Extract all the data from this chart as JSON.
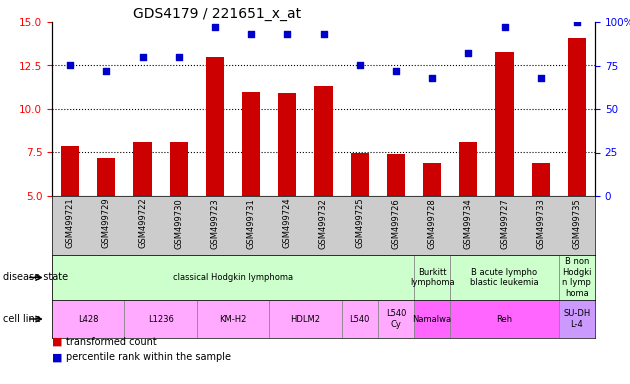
{
  "title": "GDS4179 / 221651_x_at",
  "samples": [
    "GSM499721",
    "GSM499729",
    "GSM499722",
    "GSM499730",
    "GSM499723",
    "GSM499731",
    "GSM499724",
    "GSM499732",
    "GSM499725",
    "GSM499726",
    "GSM499728",
    "GSM499734",
    "GSM499727",
    "GSM499733",
    "GSM499735"
  ],
  "bar_values": [
    7.9,
    7.2,
    8.1,
    8.1,
    13.0,
    11.0,
    10.9,
    11.3,
    7.5,
    7.4,
    6.9,
    8.1,
    13.3,
    6.9,
    14.1
  ],
  "dot_values": [
    75,
    72,
    80,
    80,
    97,
    93,
    93,
    93,
    75,
    72,
    68,
    82,
    97,
    68,
    100
  ],
  "ylim": [
    5,
    15
  ],
  "y2lim": [
    0,
    100
  ],
  "yticks": [
    5,
    7.5,
    10,
    12.5,
    15
  ],
  "y2ticks": [
    0,
    25,
    50,
    75,
    100
  ],
  "bar_color": "#cc0000",
  "dot_color": "#0000cc",
  "hline_values": [
    7.5,
    10.0,
    12.5
  ],
  "disease_state_groups": [
    {
      "label": "classical Hodgkin lymphoma",
      "start": 0,
      "end": 9,
      "color": "#ccffcc"
    },
    {
      "label": "Burkitt\nlymphoma",
      "start": 10,
      "end": 10,
      "color": "#ccffcc"
    },
    {
      "label": "B acute lympho\nblastic leukemia",
      "start": 11,
      "end": 13,
      "color": "#ccffcc"
    },
    {
      "label": "B non\nHodgki\nn lymp\nhoma",
      "start": 14,
      "end": 14,
      "color": "#ccffcc"
    }
  ],
  "cell_line_groups": [
    {
      "label": "L428",
      "start": 0,
      "end": 1,
      "color": "#ffaaff"
    },
    {
      "label": "L1236",
      "start": 2,
      "end": 3,
      "color": "#ffaaff"
    },
    {
      "label": "KM-H2",
      "start": 4,
      "end": 5,
      "color": "#ffaaff"
    },
    {
      "label": "HDLM2",
      "start": 6,
      "end": 7,
      "color": "#ffaaff"
    },
    {
      "label": "L540",
      "start": 8,
      "end": 8,
      "color": "#ffaaff"
    },
    {
      "label": "L540\nCy",
      "start": 9,
      "end": 9,
      "color": "#ffaaff"
    },
    {
      "label": "Namalwa",
      "start": 10,
      "end": 10,
      "color": "#ff66ff"
    },
    {
      "label": "Reh",
      "start": 11,
      "end": 13,
      "color": "#ff66ff"
    },
    {
      "label": "SU-DH\nL-4",
      "start": 14,
      "end": 14,
      "color": "#cc99ff"
    }
  ],
  "xtick_bg": "#cccccc",
  "legend_items": [
    {
      "label": "transformed count",
      "color": "#cc0000"
    },
    {
      "label": "percentile rank within the sample",
      "color": "#0000cc"
    }
  ]
}
